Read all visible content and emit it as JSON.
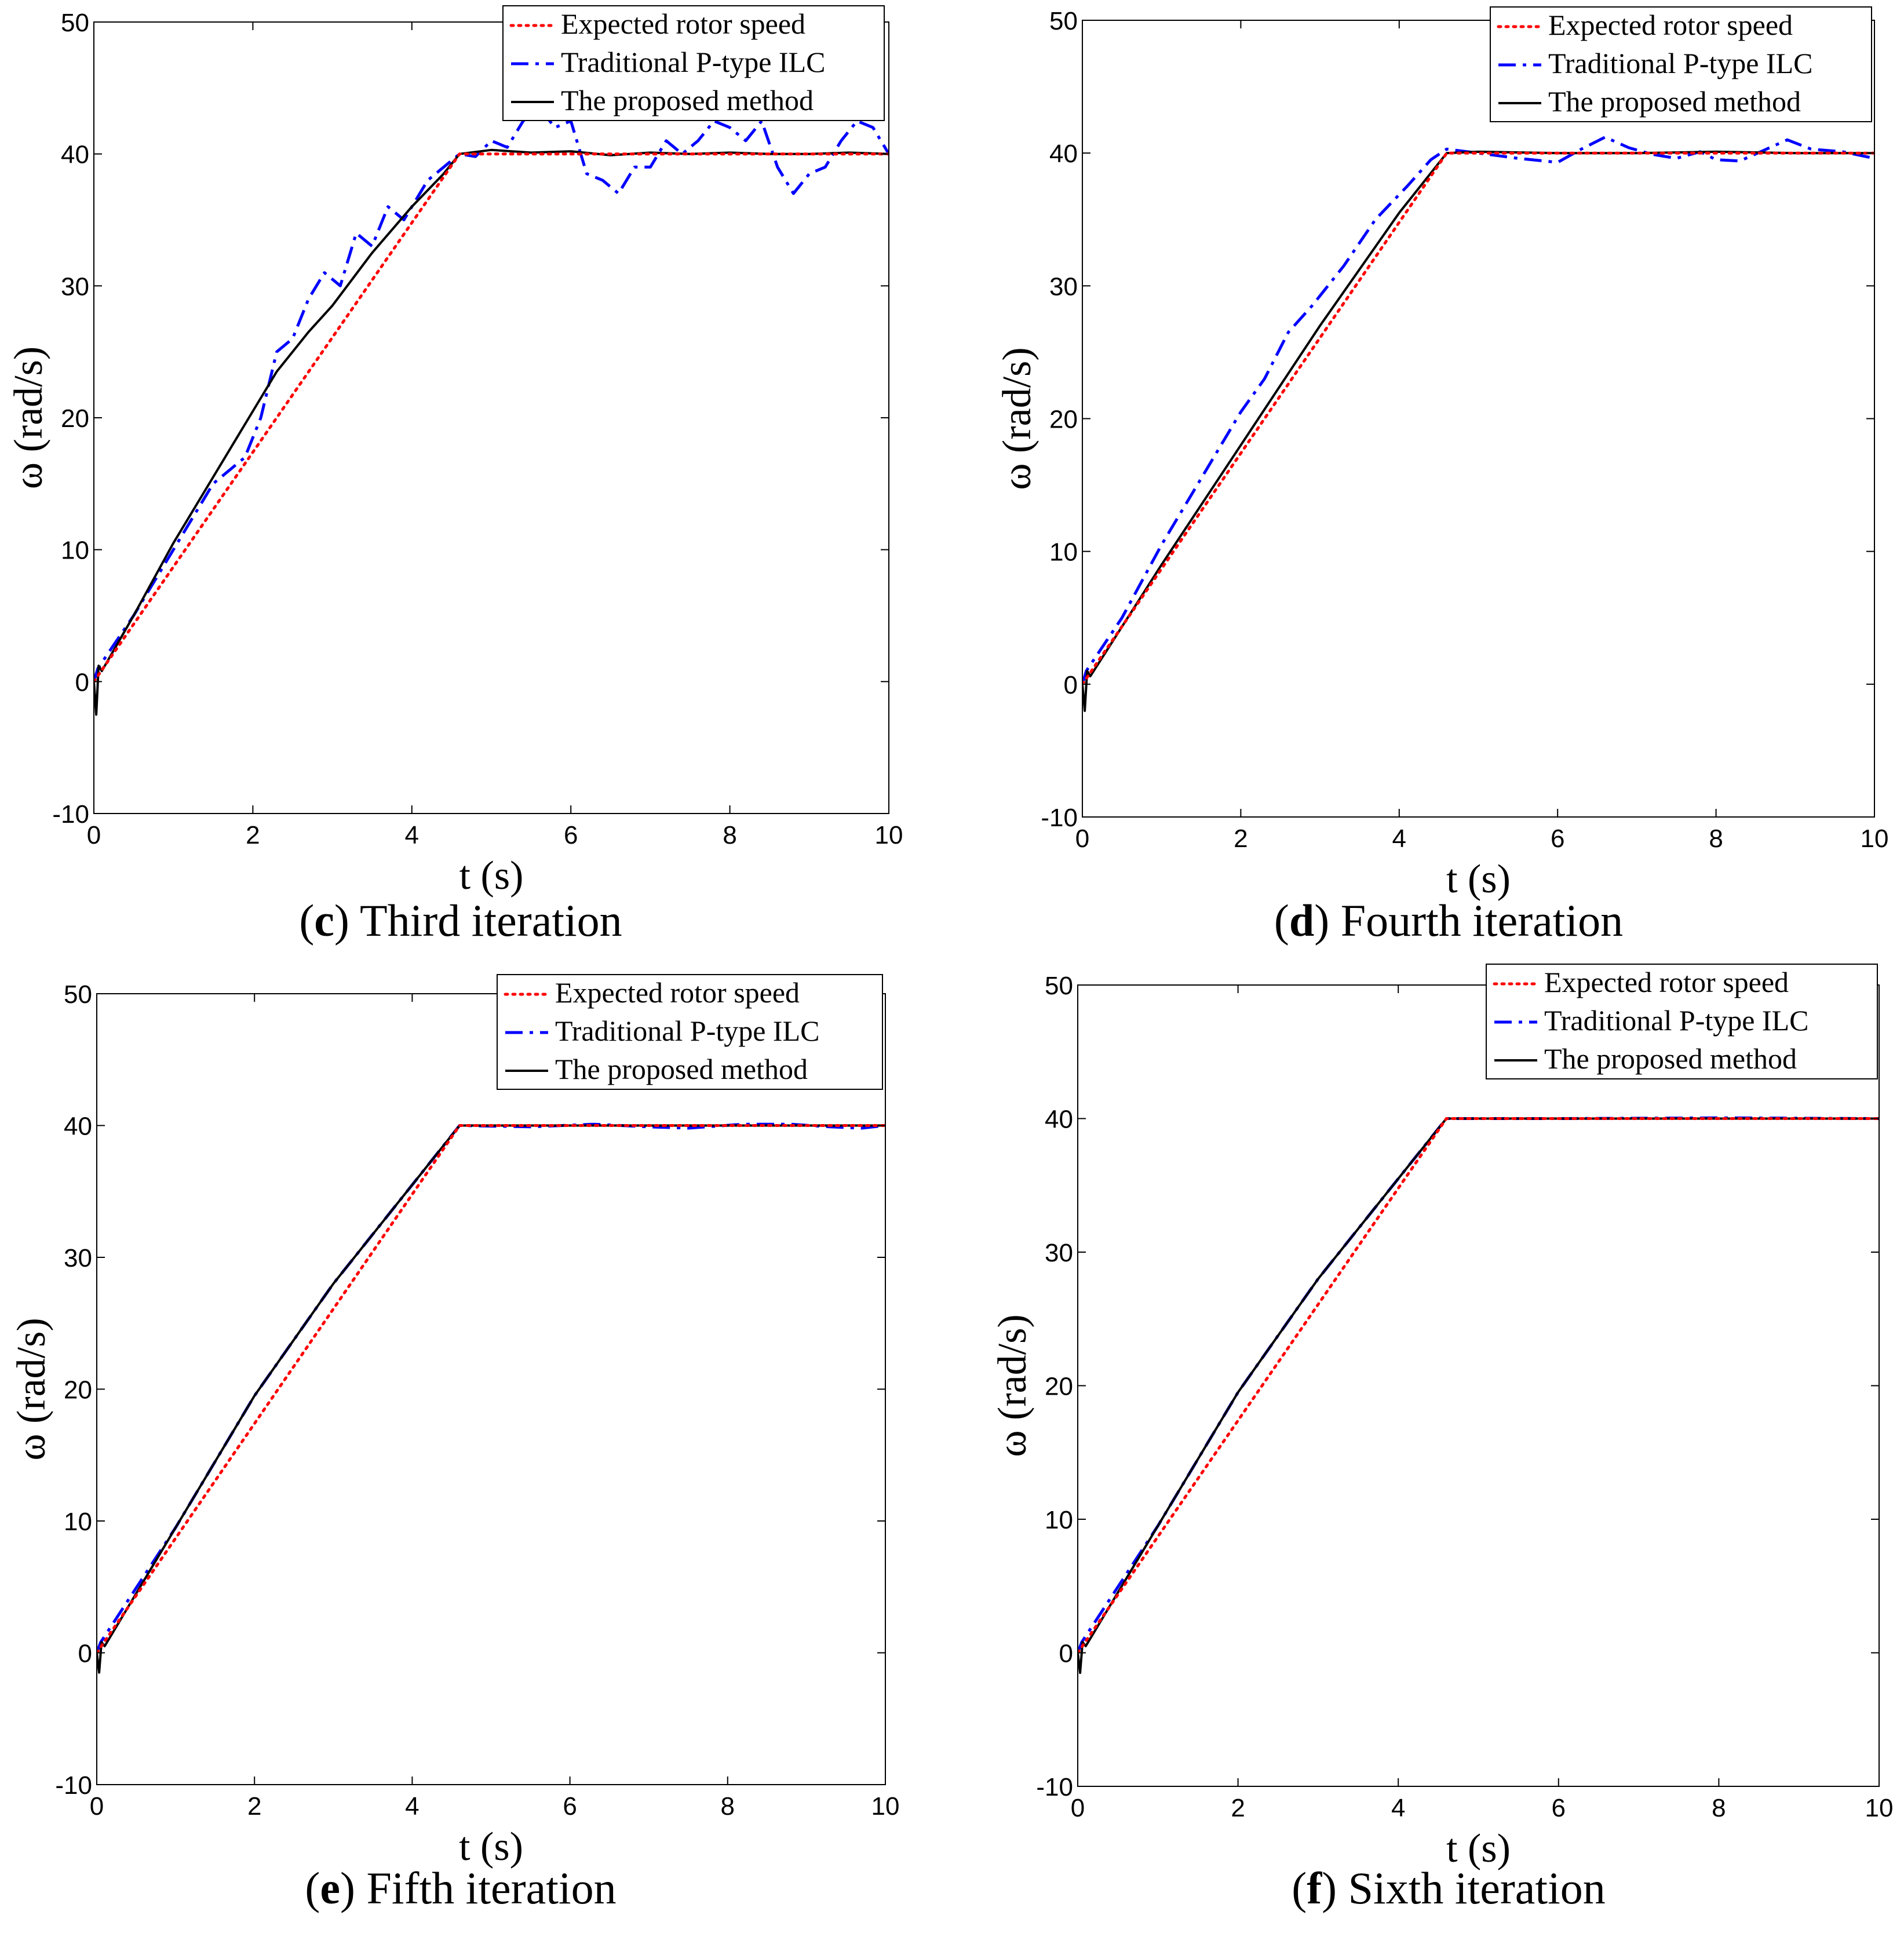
{
  "figure": {
    "legend_labels": [
      "Expected rotor speed",
      "Traditional P-type ILC",
      "The proposed method"
    ],
    "series_colors": {
      "expected": "#ff0000",
      "traditional": "#0000ff",
      "proposed": "#000000"
    }
  },
  "chart_data": [
    {
      "type": "line",
      "panel_letter": "c",
      "caption": "Third iteration",
      "xlabel": "t (s)",
      "ylabel": "ω (rad/s)",
      "xlim": [
        0,
        10
      ],
      "ylim": [
        -10,
        50
      ],
      "xticks": [
        0,
        2,
        4,
        6,
        8,
        10
      ],
      "yticks": [
        -10,
        0,
        10,
        20,
        30,
        40,
        50
      ],
      "legend": "top-right",
      "series": [
        {
          "name": "Expected rotor speed",
          "style": "dotted",
          "x": [
            0,
            4.6,
            10
          ],
          "y": [
            0,
            40,
            40
          ]
        },
        {
          "name": "Traditional P-type ILC",
          "style": "dashdot",
          "x": [
            0,
            0.05,
            0.5,
            1.0,
            1.5,
            1.9,
            2.1,
            2.3,
            2.5,
            2.7,
            2.9,
            3.1,
            3.3,
            3.5,
            3.7,
            3.9,
            4.2,
            4.6,
            4.8,
            5.0,
            5.2,
            5.4,
            5.6,
            5.8,
            6.0,
            6.2,
            6.4,
            6.6,
            6.8,
            7.0,
            7.2,
            7.4,
            7.6,
            7.8,
            8.0,
            8.2,
            8.4,
            8.6,
            8.8,
            9.0,
            9.2,
            9.4,
            9.6,
            9.8,
            10.0
          ],
          "y": [
            0,
            1,
            5,
            10,
            15,
            17,
            20,
            25,
            26,
            29,
            31,
            30,
            34,
            33,
            36,
            35,
            38,
            40,
            39.8,
            41,
            40.5,
            42.5,
            43.5,
            42,
            42.5,
            38.5,
            38,
            37,
            39,
            39,
            41,
            40,
            41,
            42.5,
            42,
            41,
            42.5,
            39,
            37,
            38.5,
            39,
            41,
            42.5,
            42,
            40
          ]
        },
        {
          "name": "The proposed method",
          "style": "solid",
          "x": [
            0,
            0.03,
            0.06,
            0.1,
            0.5,
            1.0,
            1.5,
            2.0,
            2.3,
            2.7,
            3.0,
            3.5,
            4.0,
            4.4,
            4.6,
            5.0,
            5.5,
            6.0,
            6.5,
            7.0,
            7.5,
            8.0,
            8.5,
            9.0,
            9.5,
            10.0
          ],
          "y": [
            0,
            -2.5,
            1.2,
            0.8,
            5,
            10.5,
            15.5,
            20.5,
            23.5,
            26.5,
            28.5,
            32.5,
            36,
            38.5,
            40,
            40.3,
            40.1,
            40.2,
            39.9,
            40.1,
            40,
            40.1,
            40,
            40,
            40.1,
            40
          ]
        }
      ]
    },
    {
      "type": "line",
      "panel_letter": "d",
      "caption": "Fourth iteration",
      "xlabel": "t (s)",
      "ylabel": "ω (rad/s)",
      "xlim": [
        0,
        10
      ],
      "ylim": [
        -10,
        50
      ],
      "xticks": [
        0,
        2,
        4,
        6,
        8,
        10
      ],
      "yticks": [
        -10,
        0,
        10,
        20,
        30,
        40,
        50
      ],
      "legend": "top-right",
      "series": [
        {
          "name": "Expected rotor speed",
          "style": "dotted",
          "x": [
            0,
            4.6,
            10
          ],
          "y": [
            0,
            40,
            40
          ]
        },
        {
          "name": "Traditional P-type ILC",
          "style": "dashdot",
          "x": [
            0,
            0.05,
            0.5,
            1.0,
            1.5,
            2.0,
            2.3,
            2.6,
            2.9,
            3.3,
            3.7,
            4.1,
            4.4,
            4.6,
            5.0,
            5.5,
            6.0,
            6.3,
            6.6,
            6.9,
            7.2,
            7.5,
            7.8,
            8.0,
            8.3,
            8.6,
            8.9,
            9.2,
            9.6,
            10.0
          ],
          "y": [
            0,
            1,
            5,
            10.5,
            15.5,
            20.5,
            23,
            26.5,
            28.5,
            31.5,
            35,
            37.5,
            39.5,
            40.3,
            40,
            39.6,
            39.3,
            40.3,
            41.2,
            40.4,
            39.9,
            39.6,
            40.1,
            39.5,
            39.4,
            40.2,
            41.0,
            40.3,
            40.1,
            39.6
          ]
        },
        {
          "name": "The proposed method",
          "style": "solid",
          "x": [
            0,
            0.03,
            0.06,
            0.1,
            1.0,
            2.0,
            3.0,
            4.0,
            4.6,
            5.0,
            6.0,
            7.0,
            8.0,
            9.0,
            10.0
          ],
          "y": [
            0,
            -2,
            1.0,
            0.6,
            9,
            18,
            27,
            35.5,
            40,
            40.1,
            40,
            40,
            40.1,
            40,
            40
          ]
        }
      ]
    },
    {
      "type": "line",
      "panel_letter": "e",
      "caption": "Fifth iteration",
      "xlabel": "t (s)",
      "ylabel": "ω (rad/s)",
      "xlim": [
        0,
        10
      ],
      "ylim": [
        -10,
        50
      ],
      "xticks": [
        0,
        2,
        4,
        6,
        8,
        10
      ],
      "yticks": [
        -10,
        0,
        10,
        20,
        30,
        40,
        50
      ],
      "legend": "top-right",
      "series": [
        {
          "name": "Expected rotor speed",
          "style": "dotted",
          "x": [
            0,
            4.6,
            10
          ],
          "y": [
            0,
            40,
            40
          ]
        },
        {
          "name": "Traditional P-type ILC",
          "style": "dashdot",
          "x": [
            0,
            0.05,
            1.0,
            2.0,
            3.0,
            4.0,
            4.6,
            5.5,
            6.3,
            7.0,
            7.5,
            8.2,
            8.8,
            9.3,
            9.7,
            10.0
          ],
          "y": [
            0,
            0.8,
            9.5,
            19.5,
            28,
            35.5,
            40,
            39.9,
            40.1,
            39.9,
            39.8,
            40.1,
            40.1,
            39.9,
            39.8,
            40
          ]
        },
        {
          "name": "The proposed method",
          "style": "solid",
          "x": [
            0,
            0.03,
            0.06,
            0.1,
            1.0,
            2.0,
            3.0,
            4.0,
            4.6,
            6.0,
            8.0,
            10.0
          ],
          "y": [
            0,
            -1.5,
            0.8,
            0.5,
            9.5,
            19.5,
            28,
            35.5,
            40,
            40,
            40,
            40
          ]
        }
      ]
    },
    {
      "type": "line",
      "panel_letter": "f",
      "caption": "Sixth iteration",
      "xlabel": "t (s)",
      "ylabel": "ω (rad/s)",
      "xlim": [
        0,
        10
      ],
      "ylim": [
        -10,
        50
      ],
      "xticks": [
        0,
        2,
        4,
        6,
        8,
        10
      ],
      "yticks": [
        -10,
        0,
        10,
        20,
        30,
        40,
        50
      ],
      "legend": "top-right",
      "series": [
        {
          "name": "Expected rotor speed",
          "style": "dotted",
          "x": [
            0,
            4.6,
            10
          ],
          "y": [
            0,
            40,
            40
          ]
        },
        {
          "name": "Traditional P-type ILC",
          "style": "dashdot",
          "x": [
            0,
            0.05,
            1.0,
            2.0,
            3.0,
            4.0,
            4.6,
            6.0,
            8.0,
            10.0
          ],
          "y": [
            0,
            0.8,
            9.5,
            19.5,
            28,
            35.5,
            40,
            40,
            40.05,
            40
          ]
        },
        {
          "name": "The proposed method",
          "style": "solid",
          "x": [
            0,
            0.03,
            0.06,
            0.1,
            1.0,
            2.0,
            3.0,
            4.0,
            4.6,
            6.0,
            8.0,
            10.0
          ],
          "y": [
            0,
            -1.5,
            0.8,
            0.5,
            9.5,
            19.5,
            28,
            35.5,
            40,
            40,
            40,
            40
          ]
        }
      ]
    }
  ]
}
